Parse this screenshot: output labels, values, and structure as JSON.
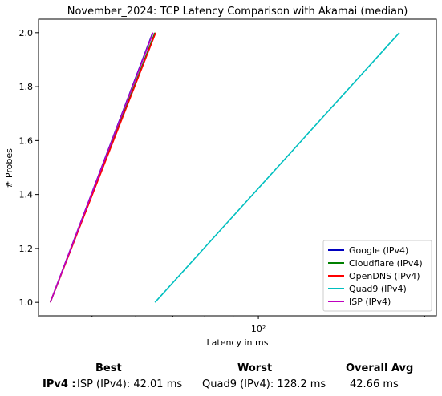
{
  "chart_data": {
    "type": "line",
    "title": "November_2024: TCP Latency Comparison with Akamai (median)",
    "xlabel": "Latency in ms",
    "ylabel": "# Probes",
    "xscale": "log",
    "xlim": [
      40,
      210
    ],
    "ylim": [
      0.95,
      2.05
    ],
    "yticks": [
      "1.0",
      "1.2",
      "1.4",
      "1.6",
      "1.8",
      "2.0"
    ],
    "xtick_labels": [
      {
        "value": 100,
        "label": "10²"
      }
    ],
    "grid": false,
    "legend_position": "lower-right",
    "series": [
      {
        "name": "Google (IPv4)",
        "color": "#0000bf",
        "points": [
          [
            42.01,
            1.0
          ],
          [
            64.4,
            2.0
          ]
        ]
      },
      {
        "name": "Cloudflare (IPv4)",
        "color": "#008000",
        "points": [
          [
            42.01,
            1.0
          ],
          [
            65.0,
            2.0
          ]
        ]
      },
      {
        "name": "OpenDNS (IPv4)",
        "color": "#ff0000",
        "points": [
          [
            42.01,
            1.0
          ],
          [
            65.2,
            2.0
          ]
        ]
      },
      {
        "name": "Quad9 (IPv4)",
        "color": "#00bfbf",
        "points": [
          [
            65.0,
            1.0
          ],
          [
            180.0,
            2.0
          ]
        ]
      },
      {
        "name": "ISP (IPv4)",
        "color": "#bf00bf",
        "points": [
          [
            42.01,
            1.0
          ],
          [
            64.5,
            2.0
          ]
        ]
      }
    ]
  },
  "summary": {
    "best_header": "Best",
    "worst_header": "Worst",
    "avg_header": "Overall Avg",
    "row_label": "IPv4 :",
    "best_value": "ISP (IPv4): 42.01 ms",
    "worst_value": "Quad9 (IPv4): 128.2 ms",
    "avg_value": "42.66 ms"
  }
}
